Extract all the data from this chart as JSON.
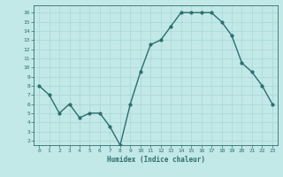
{
  "x": [
    0,
    1,
    2,
    3,
    4,
    5,
    6,
    7,
    8,
    9,
    10,
    11,
    12,
    13,
    14,
    15,
    16,
    17,
    18,
    19,
    20,
    21,
    22,
    23
  ],
  "y": [
    8,
    7,
    5,
    6,
    4.5,
    5,
    5,
    3.5,
    1.5,
    6,
    9.5,
    12.5,
    13,
    14.5,
    16,
    16,
    16,
    16,
    15,
    13.5,
    10.5,
    9.5,
    8,
    6
  ],
  "title": "",
  "xlabel": "Humidex (Indice chaleur)",
  "ylabel": "",
  "xlim": [
    -0.5,
    23.5
  ],
  "ylim": [
    1.5,
    16.8
  ],
  "yticks": [
    2,
    3,
    4,
    5,
    6,
    7,
    8,
    9,
    10,
    11,
    12,
    13,
    14,
    15,
    16
  ],
  "xticks": [
    0,
    1,
    2,
    3,
    4,
    5,
    6,
    7,
    8,
    9,
    10,
    11,
    12,
    13,
    14,
    15,
    16,
    17,
    18,
    19,
    20,
    21,
    22,
    23
  ],
  "line_color": "#2d6e6e",
  "marker_color": "#2d6e6e",
  "bg_color": "#c2e8e8",
  "grid_color": "#a8d8d8",
  "tick_color": "#2d6e6e",
  "label_color": "#2d6e6e",
  "font_name": "monospace"
}
